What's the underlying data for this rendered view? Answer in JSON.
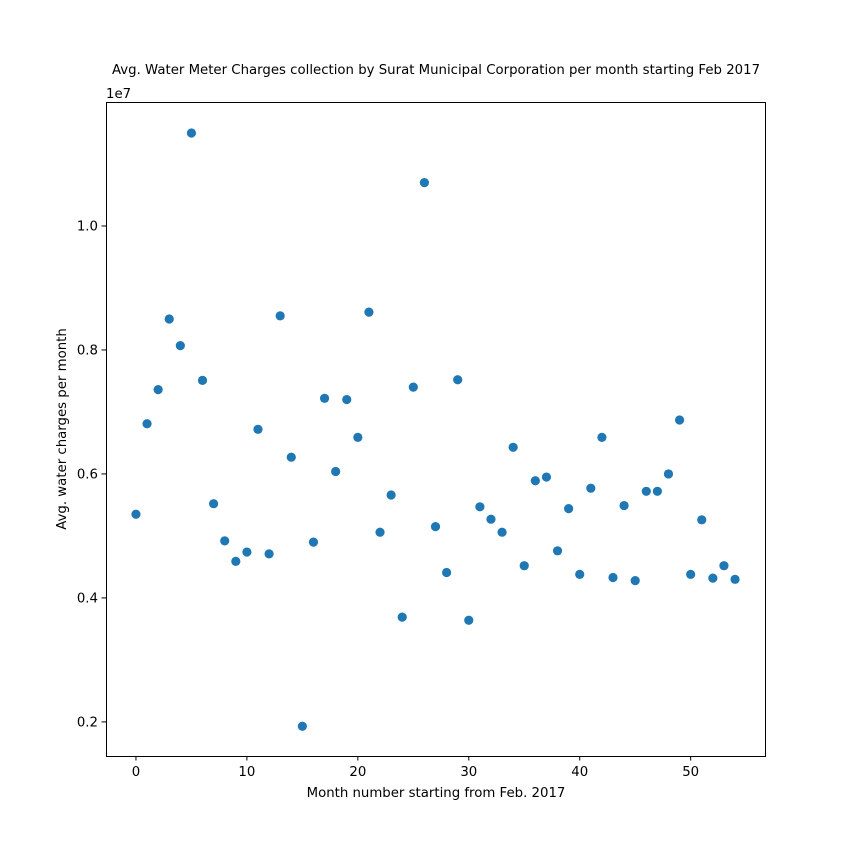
{
  "chart_data": {
    "type": "scatter",
    "title": "Avg. Water Meter Charges collection by Surat Municipal Corporation per month starting Feb 2017",
    "xlabel": "Month number starting from Feb. 2017",
    "ylabel": "Avg. water charges per month",
    "y_offset_label": "1e7",
    "xlim": [
      -2.7,
      56.7
    ],
    "ylim": [
      0.145,
      1.2
    ],
    "x_ticks": [
      0,
      10,
      20,
      30,
      40,
      50
    ],
    "x_tick_labels": [
      "0",
      "10",
      "20",
      "30",
      "40",
      "50"
    ],
    "y_ticks": [
      0.2,
      0.4,
      0.6,
      0.8,
      1.0
    ],
    "y_tick_labels": [
      "0.2",
      "0.4",
      "0.6",
      "0.8",
      "1.0"
    ],
    "grid": false,
    "marker_color": "#1f77b4",
    "x": [
      0,
      1,
      2,
      3,
      4,
      5,
      6,
      7,
      8,
      9,
      10,
      11,
      12,
      13,
      14,
      15,
      16,
      17,
      18,
      19,
      20,
      21,
      22,
      23,
      24,
      25,
      26,
      27,
      28,
      29,
      30,
      31,
      32,
      33,
      34,
      35,
      36,
      37,
      38,
      39,
      40,
      41,
      42,
      43,
      44,
      45,
      46,
      47,
      48,
      49,
      50,
      51,
      52,
      53,
      54
    ],
    "y": [
      0.535,
      0.681,
      0.736,
      0.85,
      0.807,
      1.15,
      0.751,
      0.552,
      0.492,
      0.459,
      0.474,
      0.672,
      0.471,
      0.855,
      0.627,
      0.193,
      0.49,
      0.722,
      0.604,
      0.72,
      0.659,
      0.861,
      0.506,
      0.566,
      0.369,
      0.74,
      1.07,
      0.515,
      0.441,
      0.752,
      0.364,
      0.547,
      0.527,
      0.506,
      0.643,
      0.452,
      0.589,
      0.595,
      0.476,
      0.544,
      0.438,
      0.577,
      0.659,
      0.433,
      0.549,
      0.428,
      0.572,
      0.572,
      0.6,
      0.687,
      0.438,
      0.526,
      0.432,
      0.452,
      0.43
    ]
  }
}
